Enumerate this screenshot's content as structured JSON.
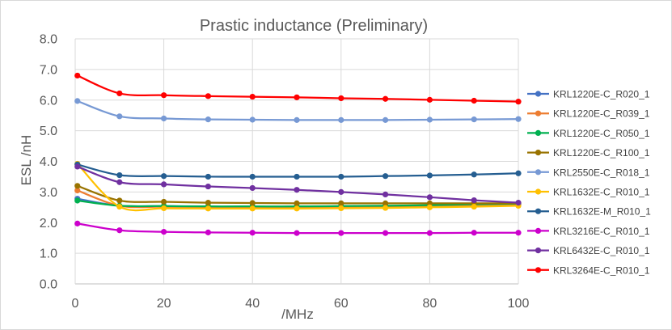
{
  "chart_data": {
    "type": "line",
    "title": "Prastic inductance (Preliminary)",
    "xlabel": "/MHz",
    "ylabel": "ESL /nH",
    "xlim": [
      0,
      100
    ],
    "ylim": [
      0,
      8
    ],
    "xticks": [
      "0",
      "20",
      "40",
      "60",
      "80",
      "100"
    ],
    "yticks": [
      "0.0",
      "1.0",
      "2.0",
      "3.0",
      "4.0",
      "5.0",
      "6.0",
      "7.0",
      "8.0"
    ],
    "grid": true,
    "legend_position": "right",
    "x": [
      0.5,
      10,
      20,
      30,
      40,
      50,
      60,
      70,
      80,
      90,
      100
    ],
    "series": [
      {
        "name": "KRL1220E-C_R020_1",
        "color": "#4472c4",
        "values": [
          2.78,
          2.55,
          2.54,
          2.52,
          2.52,
          2.52,
          2.53,
          2.54,
          2.56,
          2.58,
          2.6
        ]
      },
      {
        "name": "KRL1220E-C_R039_1",
        "color": "#ed7d31",
        "values": [
          3.05,
          2.55,
          2.52,
          2.51,
          2.5,
          2.5,
          2.51,
          2.52,
          2.53,
          2.55,
          2.58
        ]
      },
      {
        "name": "KRL1220E-C_R050_1",
        "color": "#00b050",
        "values": [
          2.72,
          2.55,
          2.54,
          2.53,
          2.53,
          2.53,
          2.54,
          2.55,
          2.57,
          2.6,
          2.62
        ]
      },
      {
        "name": "KRL1220E-C_R100_1",
        "color": "#997300",
        "values": [
          3.2,
          2.72,
          2.68,
          2.65,
          2.64,
          2.63,
          2.63,
          2.63,
          2.63,
          2.63,
          2.63
        ]
      },
      {
        "name": "KRL2550E-C_R018_1",
        "color": "#7799d4",
        "values": [
          5.97,
          5.47,
          5.4,
          5.37,
          5.36,
          5.35,
          5.35,
          5.35,
          5.36,
          5.37,
          5.38
        ]
      },
      {
        "name": "KRL1632E-C_R010_1",
        "color": "#ffc000",
        "values": [
          3.92,
          2.52,
          2.47,
          2.46,
          2.46,
          2.46,
          2.47,
          2.48,
          2.5,
          2.52,
          2.55
        ]
      },
      {
        "name": "KRL1632E-M_R010_1",
        "color": "#255e91",
        "values": [
          3.9,
          3.55,
          3.52,
          3.5,
          3.5,
          3.5,
          3.5,
          3.52,
          3.54,
          3.57,
          3.61
        ]
      },
      {
        "name": "KRL3216E-C_R010_1",
        "color": "#cc00cc",
        "values": [
          1.97,
          1.75,
          1.7,
          1.68,
          1.67,
          1.66,
          1.66,
          1.66,
          1.66,
          1.67,
          1.67
        ]
      },
      {
        "name": "KRL6432E-C_R010_1",
        "color": "#7030a0",
        "values": [
          3.83,
          3.32,
          3.25,
          3.18,
          3.13,
          3.07,
          3.0,
          2.92,
          2.83,
          2.73,
          2.65
        ]
      },
      {
        "name": "KRL3264E-C_R010_1",
        "color": "#ff0000",
        "values": [
          6.8,
          6.22,
          6.16,
          6.13,
          6.11,
          6.09,
          6.06,
          6.04,
          6.01,
          5.98,
          5.95
        ]
      }
    ]
  }
}
